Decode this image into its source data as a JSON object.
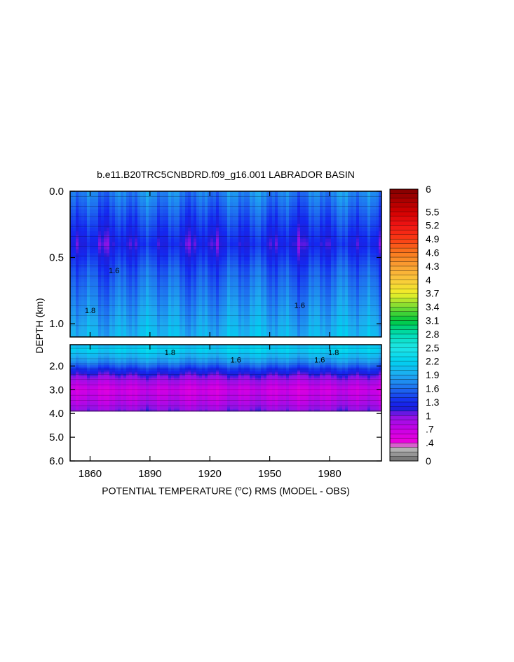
{
  "chart_data": {
    "type": "heatmap",
    "title": "b.e11.B20TRC5CNBDRD.f09_g16.001 LABRADOR BASIN",
    "xlabel_parts": [
      "POTENTIAL TEMPERATURE (",
      "o",
      "C) RMS (MODEL - OBS)"
    ],
    "ylabel": "DEPTH (km)",
    "x_ticks": [
      "1860",
      "1890",
      "1920",
      "1950",
      "1980"
    ],
    "x_tick_values": [
      1860,
      1890,
      1920,
      1950,
      1980
    ],
    "xlim": [
      1850,
      2006
    ],
    "upper_panel": {
      "y_ticks": [
        "0.0",
        "0.5",
        "1.0"
      ],
      "y_tick_values": [
        0.0,
        0.5,
        1.0
      ],
      "ylim": [
        0.0,
        1.1
      ]
    },
    "lower_panel": {
      "y_ticks": [
        "2.0",
        "3.0",
        "4.0",
        "5.0",
        "6.0"
      ],
      "y_tick_values": [
        2.0,
        3.0,
        4.0,
        5.0,
        6.0
      ],
      "ylim": [
        1.1,
        6.0
      ],
      "data_bottom_depth": 3.9
    },
    "colorbar": {
      "labels": [
        "6",
        "5.5",
        "5.2",
        "4.9",
        "4.6",
        "4.3",
        "4",
        "3.7",
        "3.4",
        "3.1",
        "2.8",
        "2.5",
        "2.2",
        "1.9",
        "1.6",
        "1.3",
        "1",
        ".7",
        ".4",
        "0"
      ],
      "label_values": [
        6,
        5.5,
        5.2,
        4.9,
        4.6,
        4.3,
        4,
        3.7,
        3.4,
        3.1,
        2.8,
        2.5,
        2.2,
        1.9,
        1.6,
        1.3,
        1,
        0.7,
        0.4,
        0
      ],
      "range": [
        0,
        6
      ]
    },
    "depth_profile_typical": [
      {
        "depth": 0.02,
        "value": 1.7
      },
      {
        "depth": 0.2,
        "value": 1.45
      },
      {
        "depth": 0.4,
        "value": 1.2
      },
      {
        "depth": 0.6,
        "value": 1.5
      },
      {
        "depth": 0.9,
        "value": 1.8
      },
      {
        "depth": 1.3,
        "value": 2.2
      },
      {
        "depth": 1.8,
        "value": 1.8
      },
      {
        "depth": 2.2,
        "value": 1.25
      },
      {
        "depth": 2.6,
        "value": 0.9
      },
      {
        "depth": 3.0,
        "value": 0.65
      },
      {
        "depth": 3.5,
        "value": 0.8
      },
      {
        "depth": 3.9,
        "value": 1.0
      }
    ],
    "contour_labels": [
      {
        "text": "1.6",
        "year": 1933,
        "depth": 1.85
      },
      {
        "text": "1.6",
        "year": 1975,
        "depth": 1.85
      },
      {
        "text": "1.8",
        "year": 1900,
        "depth": 1.55
      },
      {
        "text": "1.8",
        "year": 1982,
        "depth": 1.55
      },
      {
        "text": "1.6",
        "year": 1872,
        "depth": 0.62
      },
      {
        "text": "1.8",
        "year": 1860,
        "depth": 0.92
      },
      {
        "text": "1.6",
        "year": 1965,
        "depth": 0.88
      }
    ]
  }
}
